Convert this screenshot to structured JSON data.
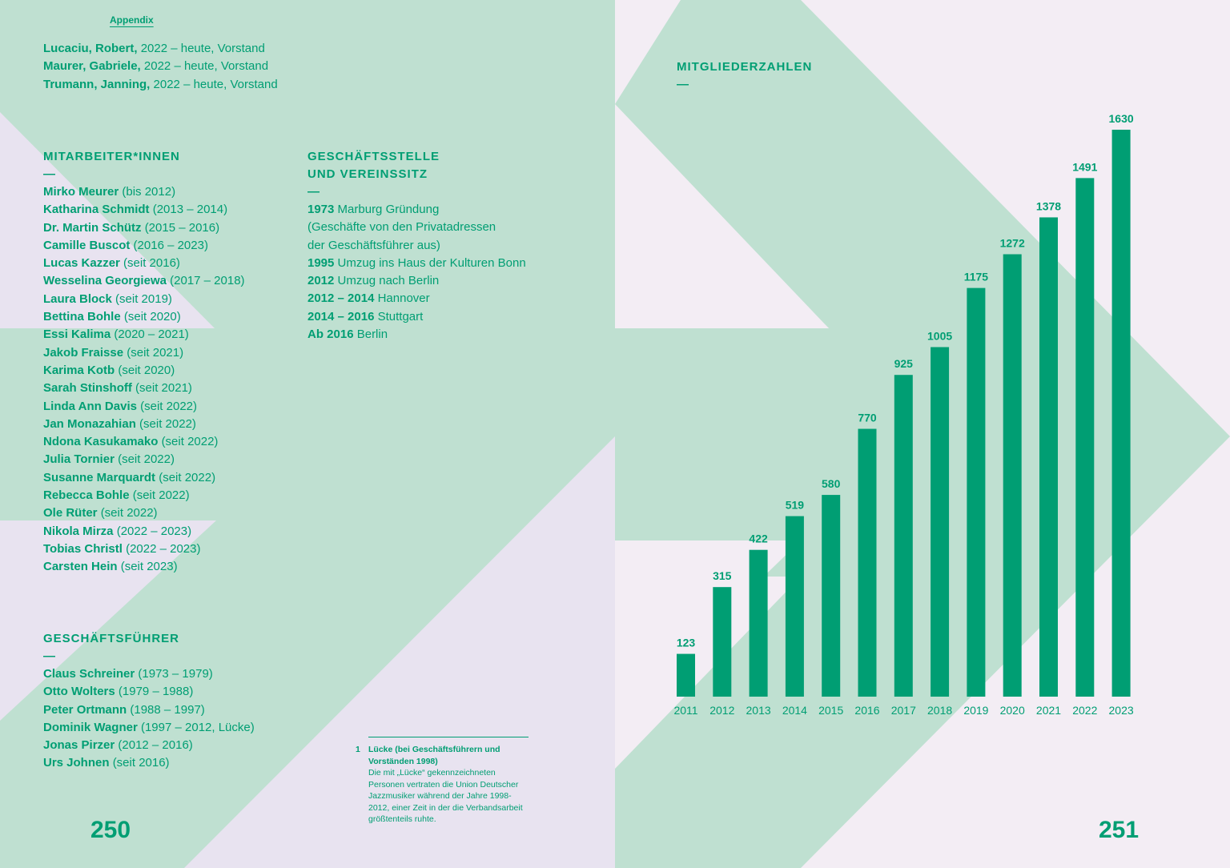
{
  "left": {
    "appendix_label": "Appendix",
    "board": [
      {
        "name": "Lucaciu, Robert,",
        "detail": "2022 – heute, Vorstand"
      },
      {
        "name": "Maurer, Gabriele,",
        "detail": "2022 – heute, Vorstand"
      },
      {
        "name": "Trumann, Janning,",
        "detail": "2022 – heute, Vorstand"
      }
    ],
    "staff": {
      "heading": "MITARBEITER*INNEN",
      "dash": "—",
      "items": [
        {
          "name": "Mirko Meurer",
          "detail": "(bis 2012)"
        },
        {
          "name": "Katharina Schmidt",
          "detail": "(2013 – 2014)"
        },
        {
          "name": "Dr. Martin Schütz",
          "detail": "(2015 – 2016)"
        },
        {
          "name": "Camille Buscot",
          "detail": "(2016 – 2023)"
        },
        {
          "name": "Lucas Kazzer",
          "detail": "(seit 2016)"
        },
        {
          "name": "Wesselina Georgiewa",
          "detail": "(2017 – 2018)"
        },
        {
          "name": "Laura Block",
          "detail": "(seit 2019)"
        },
        {
          "name": "Bettina Bohle",
          "detail": "(seit 2020)"
        },
        {
          "name": "Essi Kalima",
          "detail": "(2020 – 2021)"
        },
        {
          "name": "Jakob Fraisse",
          "detail": "(seit 2021)"
        },
        {
          "name": "Karima Kotb",
          "detail": "(seit 2020)"
        },
        {
          "name": "Sarah Stinshoff",
          "detail": "(seit 2021)"
        },
        {
          "name": "Linda Ann Davis",
          "detail": "(seit 2022)"
        },
        {
          "name": "Jan Monazahian",
          "detail": "(seit 2022)"
        },
        {
          "name": "Ndona Kasukamako",
          "detail": "(seit 2022)"
        },
        {
          "name": "Julia Tornier",
          "detail": "(seit 2022)"
        },
        {
          "name": "Susanne Marquardt",
          "detail": "(seit 2022)"
        },
        {
          "name": "Rebecca Bohle",
          "detail": "(seit 2022)"
        },
        {
          "name": "Ole Rüter",
          "detail": "(seit 2022)"
        },
        {
          "name": "Nikola Mirza",
          "detail": "(2022 – 2023)"
        },
        {
          "name": "Tobias Christl",
          "detail": "(2022 – 2023)"
        },
        {
          "name": "Carsten Hein",
          "detail": "(seit 2023)"
        }
      ]
    },
    "office": {
      "heading_line1": "GESCHÄFTSSTELLE",
      "heading_line2": "UND VEREINSSITZ",
      "dash": "—",
      "items": [
        {
          "bold": "1973",
          "text": "Marburg Gründung"
        },
        {
          "bold": "",
          "text": "(Geschäfte von den Privatadressen"
        },
        {
          "bold": "",
          "text": "der Geschäftsführer aus)"
        },
        {
          "bold": "1995",
          "text": "Umzug ins Haus der Kulturen Bonn"
        },
        {
          "bold": "2012",
          "text": "Umzug nach Berlin"
        },
        {
          "bold": "2012 – 2014",
          "text": "Hannover"
        },
        {
          "bold": "2014 – 2016",
          "text": "Stuttgart"
        },
        {
          "bold": "Ab 2016",
          "text": "Berlin"
        }
      ]
    },
    "managers": {
      "heading": "GESCHÄFTSFÜHRER",
      "dash": "—",
      "items": [
        {
          "name": "Claus Schreiner",
          "detail": "(1973 – 1979)"
        },
        {
          "name": "Otto Wolters",
          "detail": "(1979 – 1988)"
        },
        {
          "name": "Peter Ortmann",
          "detail": "(1988 – 1997)"
        },
        {
          "name": "Dominik Wagner",
          "detail": "(1997 – 2012, Lücke)"
        },
        {
          "name": "Jonas Pirzer",
          "detail": "(2012 – 2016)"
        },
        {
          "name": "Urs Johnen",
          "detail": "(seit 2016)"
        }
      ]
    },
    "footnote": {
      "number": "1",
      "title_line1": "Lücke (bei Geschäftsführern und",
      "title_line2": "Vorständen 1998)",
      "body": [
        "Die mit „Lücke“ gekennzeichneten",
        "Personen vertraten die Union Deutscher",
        "Jazzmusiker während der Jahre 1998-",
        "2012, einer Zeit in der die Verbandsarbeit",
        "größtenteils ruhte."
      ]
    },
    "page_number": "250"
  },
  "right": {
    "heading": "MITGLIEDERZAHLEN",
    "dash": "—",
    "page_number": "251"
  },
  "colors": {
    "accent": "#009e73",
    "mint": "#bfe0d1",
    "page": "#f3edf4",
    "lavender": "#e8e3f0"
  },
  "chart_data": {
    "type": "bar",
    "title": "MITGLIEDERZAHLEN",
    "categories": [
      "2011",
      "2012",
      "2013",
      "2014",
      "2015",
      "2016",
      "2017",
      "2018",
      "2019",
      "2020",
      "2021",
      "2022",
      "2023"
    ],
    "values": [
      123,
      315,
      422,
      519,
      580,
      770,
      925,
      1005,
      1175,
      1272,
      1378,
      1491,
      1630
    ],
    "ylim": [
      0,
      1630
    ],
    "grid": false,
    "data_labels": true
  }
}
